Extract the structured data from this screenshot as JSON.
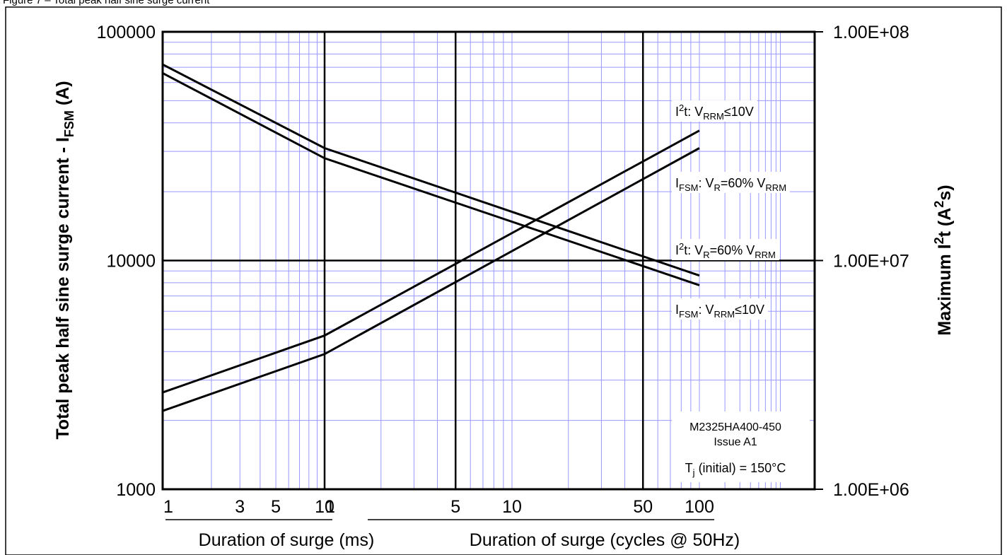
{
  "figure_caption": "Figure 7 – Total peak half sine surge current",
  "chart_data": {
    "type": "line",
    "title": "",
    "ylabel_left": {
      "text": "Total peak half sine surge current - I",
      "sub": "FSM",
      "tail": " (A)"
    },
    "ylabel_right": {
      "text": "Maximum I",
      "sup": "2",
      "tail": "t (A",
      "sup2": "2",
      "tail2": "s)"
    },
    "ylim_left": [
      1000,
      100000
    ],
    "ylim_right": [
      1000000,
      100000000
    ],
    "y_scale": "log",
    "left_ticks": [
      {
        "value": 100000,
        "label": "100000"
      },
      {
        "value": 10000,
        "label": "10000"
      },
      {
        "value": 1000,
        "label": "1000"
      }
    ],
    "right_ticks": [
      {
        "value": 100000000,
        "label": "1.00E+08"
      },
      {
        "value": 10000000,
        "label": "1.00E+07"
      },
      {
        "value": 1000000,
        "label": "1.00E+06"
      }
    ],
    "x_segments": [
      {
        "unit": "ms",
        "range": [
          1,
          10
        ],
        "label": "Duration of surge (ms)",
        "ticks": [
          {
            "value": 1,
            "label": "1"
          },
          {
            "value": 3,
            "label": "3"
          },
          {
            "value": 5,
            "label": "5"
          },
          {
            "value": 10,
            "label": "10"
          }
        ]
      },
      {
        "unit": "cycles",
        "range": [
          1,
          100
        ],
        "label": "Duration of surge (cycles @ 50Hz)",
        "ticks": [
          {
            "value": 1,
            "label": "1"
          },
          {
            "value": 5,
            "label": "5"
          },
          {
            "value": 10,
            "label": "10"
          },
          {
            "value": 50,
            "label": "50"
          },
          {
            "value": 100,
            "label": "100"
          }
        ]
      }
    ],
    "grid": true,
    "series": [
      {
        "name_parts": [
          [
            "I"
          ],
          [
            "FSM",
            "sub"
          ],
          [
            ": V"
          ],
          [
            "RRM",
            "sub"
          ],
          [
            "≤10V"
          ]
        ],
        "axis": "left",
        "points": [
          {
            "seg": 0,
            "x": 1,
            "y": 72000
          },
          {
            "seg": 0,
            "x": 10,
            "y": 31000
          },
          {
            "seg": 1,
            "x": 1,
            "y": 31000
          },
          {
            "seg": 1,
            "x": 100,
            "y": 8600
          }
        ]
      },
      {
        "name_parts": [
          [
            "I"
          ],
          [
            "FSM",
            "sub"
          ],
          [
            ": V"
          ],
          [
            "R",
            "sub"
          ],
          [
            "=60% V"
          ],
          [
            "RRM",
            "sub"
          ]
        ],
        "axis": "left",
        "points": [
          {
            "seg": 0,
            "x": 1,
            "y": 66000
          },
          {
            "seg": 0,
            "x": 10,
            "y": 28000
          },
          {
            "seg": 1,
            "x": 1,
            "y": 28000
          },
          {
            "seg": 1,
            "x": 100,
            "y": 7800
          }
        ]
      },
      {
        "name_parts": [
          [
            "I"
          ],
          [
            "2",
            "sup"
          ],
          [
            "t: V"
          ],
          [
            "RRM",
            "sub"
          ],
          [
            "≤10V"
          ]
        ],
        "axis": "right",
        "points": [
          {
            "seg": 0,
            "x": 1,
            "y": 2650000
          },
          {
            "seg": 0,
            "x": 10,
            "y": 4700000
          },
          {
            "seg": 1,
            "x": 1,
            "y": 4700000
          },
          {
            "seg": 1,
            "x": 100,
            "y": 37000000
          }
        ]
      },
      {
        "name_parts": [
          [
            "I"
          ],
          [
            "2",
            "sup"
          ],
          [
            "t: V"
          ],
          [
            "R",
            "sub"
          ],
          [
            "=60% V"
          ],
          [
            "RRM",
            "sub"
          ]
        ],
        "axis": "right",
        "points": [
          {
            "seg": 0,
            "x": 1,
            "y": 2200000
          },
          {
            "seg": 0,
            "x": 10,
            "y": 3900000
          },
          {
            "seg": 1,
            "x": 1,
            "y": 3900000
          },
          {
            "seg": 1,
            "x": 100,
            "y": 31000000
          }
        ]
      }
    ],
    "series_label_order": [
      2,
      1,
      3,
      0
    ],
    "annotations": {
      "part_number": "M2325HA400-450",
      "issue": "Issue A1",
      "tj": {
        "prefix": "T",
        "sub": "j",
        "text": " (initial) = 150°C"
      }
    },
    "colors": {
      "line": "#000000",
      "grid": "#9999ff",
      "axis": "#000000",
      "background": "#ffffff"
    }
  }
}
